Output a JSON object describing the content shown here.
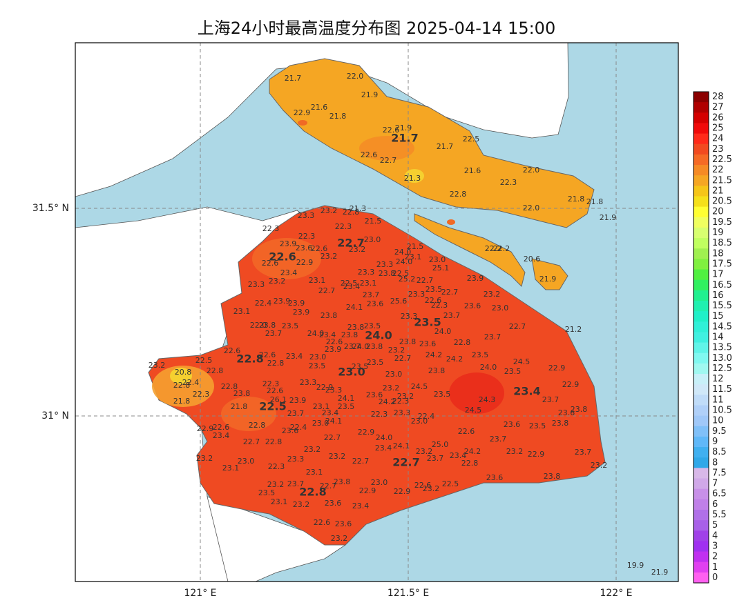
{
  "title": "上海24小时最高温度分布图 2025-04-14 15:00",
  "x_axis_labels": [
    "121° E",
    "121.5° E",
    "122° E"
  ],
  "y_axis_labels": [
    "31.5° N",
    "31° N"
  ],
  "colorbar_labels": [
    "28",
    "27",
    "26",
    "25",
    "24",
    "23",
    "22.5",
    "22",
    "21.5",
    "21",
    "20.5",
    "20",
    "19.5",
    "19",
    "18.5",
    "18",
    "17.5",
    "17",
    "16.5",
    "16",
    "15.5",
    "15",
    "14.5",
    "14",
    "13.5",
    "13.0",
    "12.5",
    "12",
    "11.5",
    "11",
    "10.5",
    "10",
    "9.5",
    "9",
    "8.5",
    "8",
    "7.5",
    "7",
    "6.5",
    "6",
    "5.5",
    "5",
    "4",
    "3",
    "2",
    "1",
    "0"
  ],
  "stations": [
    "21.7",
    "22.0",
    "21.9",
    "22.9",
    "21.6",
    "21.8",
    "22.6",
    "21.9",
    "21.7",
    "22.5",
    "21.7",
    "22.6",
    "22.7",
    "21.6",
    "22.0",
    "21.3",
    "22.3",
    "22.8",
    "21.8",
    "21.8",
    "22.0",
    "21.9",
    "22.2",
    "22.2",
    "20.6",
    "21.9",
    "23.3",
    "23.2",
    "22.8",
    "21.3",
    "21.5",
    "22.3",
    "22.3",
    "22.3",
    "23.0",
    "22.7",
    "23.9",
    "23.6",
    "22.6",
    "23.2",
    "21.5",
    "22.6",
    "23.2",
    "24.0",
    "23.1",
    "22.6",
    "22.9",
    "24.0",
    "23.0",
    "25.1",
    "23.3",
    "23.4",
    "23.3",
    "23.8",
    "22.5",
    "23.1",
    "22.5",
    "23.1",
    "25.2",
    "22.7",
    "23.9",
    "23.3",
    "23.2",
    "22.7",
    "23.4",
    "23.5",
    "22.7",
    "23.7",
    "23.3",
    "22.6",
    "23.2",
    "22.4",
    "23.9",
    "23.9",
    "24.1",
    "23.6",
    "25.6",
    "22.3",
    "23.6",
    "23.0",
    "23.1",
    "23.9",
    "23.8",
    "23.3",
    "23.7",
    "23.5",
    "22.0",
    "23.8",
    "23.5",
    "23.8",
    "23.5",
    "22.7",
    "21.2",
    "23.7",
    "24.0",
    "23.4",
    "23.8",
    "24.0",
    "24.0",
    "23.7",
    "22.6",
    "22.8",
    "23.8",
    "23.6",
    "22.6",
    "23.9",
    "23.7",
    "24.0",
    "23.8",
    "23.2",
    "24.2",
    "24.2",
    "23.5",
    "24.5",
    "22.8",
    "22.6",
    "23.4",
    "23.0",
    "22.7",
    "23.2",
    "22.5",
    "22.8",
    "23.5",
    "23.5",
    "23.5",
    "23.8",
    "24.0",
    "23.5",
    "22.9",
    "20.8",
    "22.8",
    "23.0",
    "23.0",
    "22.4",
    "22.8",
    "22.3",
    "23.3",
    "22.9",
    "23.3",
    "23.2",
    "24.5",
    "23.4",
    "22.9",
    "22.3",
    "22.8",
    "23.8",
    "22.6",
    "23.6",
    "23.2",
    "23.5",
    "23.7",
    "21.8",
    "24.1",
    "24.2",
    "22.3",
    "24.3",
    "26.1",
    "23.9",
    "21.8",
    "22.5",
    "23.1",
    "23.5",
    "23.8",
    "23.6",
    "23.7",
    "23.4",
    "22.3",
    "23.3",
    "22.4",
    "24.5",
    "24.1",
    "23.0",
    "23.0",
    "22.9",
    "22.6",
    "22.8",
    "22.4",
    "23.6",
    "23.6",
    "23.5",
    "23.8",
    "23.4",
    "22.7",
    "22.9",
    "22.6",
    "22.7",
    "22.8",
    "24.0",
    "24.1",
    "25.0",
    "23.7",
    "23.4",
    "23.2",
    "23.2",
    "24.2",
    "23.2",
    "22.9",
    "23.7",
    "23.2",
    "23.0",
    "23.3",
    "23.2",
    "22.7",
    "22.7",
    "23.7",
    "23.4",
    "22.8",
    "23.2",
    "23.1",
    "22.3",
    "23.1",
    "23.8",
    "23.0",
    "23.6",
    "23.8",
    "23.2",
    "23.7",
    "22.7",
    "22.6",
    "23.2",
    "22.5",
    "23.5",
    "22.8",
    "22.9",
    "22.9",
    "23.1",
    "23.2",
    "23.6",
    "23.4",
    "22.6",
    "23.6",
    "23.2",
    "19.9",
    "21.9"
  ]
}
